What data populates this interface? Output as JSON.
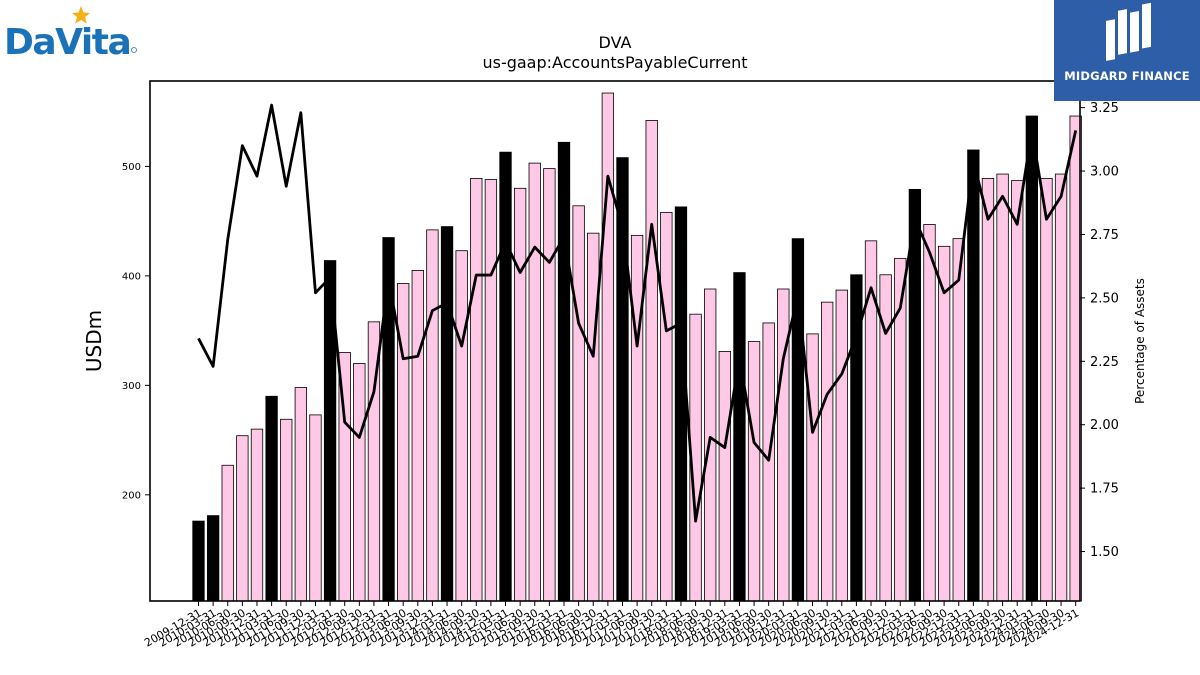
{
  "logos": {
    "left_text": "DaVita",
    "right_text": "MIDGARD FINANCE"
  },
  "chart_data": {
    "type": "bar",
    "title": "DVA",
    "subtitle": "us-gaap:AccountsPayableCurrent",
    "ylabel": "USDm",
    "y2label": "Percentage of Assets",
    "ylim": [
      103,
      578
    ],
    "y2lim": [
      1.305,
      3.355
    ],
    "yticks": [
      200,
      300,
      400,
      500
    ],
    "y2ticks": [
      1.5,
      1.75,
      2.0,
      2.25,
      2.5,
      2.75,
      3.0,
      3.25
    ],
    "y2tick_labels": [
      "1.50",
      "1.75",
      "2.00",
      "2.25",
      "2.50",
      "2.75",
      "3.00",
      "3.25"
    ],
    "categories": [
      "2009-12-31",
      "2010-03-31",
      "2010-06-30",
      "2010-09-30",
      "2010-12-31",
      "2011-03-31",
      "2011-06-30",
      "2011-09-30",
      "2011-12-31",
      "2012-03-31",
      "2012-06-30",
      "2012-09-30",
      "2012-12-31",
      "2013-03-31",
      "2013-06-30",
      "2013-09-30",
      "2013-12-31",
      "2014-03-31",
      "2014-06-30",
      "2014-09-30",
      "2014-12-31",
      "2015-03-31",
      "2015-06-30",
      "2015-09-30",
      "2015-12-31",
      "2016-03-31",
      "2016-06-30",
      "2016-09-30",
      "2016-12-31",
      "2017-03-31",
      "2017-06-30",
      "2017-09-30",
      "2017-12-31",
      "2018-03-31",
      "2018-06-30",
      "2018-09-30",
      "2018-12-31",
      "2019-03-31",
      "2019-06-30",
      "2019-09-30",
      "2019-12-31",
      "2020-03-31",
      "2020-06-30",
      "2020-09-30",
      "2020-12-31",
      "2021-03-31",
      "2021-06-30",
      "2021-09-30",
      "2021-12-31",
      "2022-03-31",
      "2022-06-30",
      "2022-09-30",
      "2022-12-31",
      "2023-03-31",
      "2023-06-30",
      "2023-09-30",
      "2023-12-31",
      "2024-03-31",
      "2024-06-30",
      "2024-09-30",
      "2024-12-31"
    ],
    "xtick_labels": [
      "2009-12-31",
      "2010-03-31",
      "2010-06-30",
      "2010-09-30",
      "2010-12-31",
      "2011-03-31",
      "2011-06-30",
      "2011-09-30",
      "2011-12-31",
      "2012-03-31",
      "2012-06-30",
      "2012-09-30",
      "2012-12-31",
      "2013-03-31",
      "2013-06-30",
      "2013-09-30",
      "2013-12-31",
      "2014-03-31",
      "2014-06-30",
      "2014-09-30",
      "2014-12-31",
      "2015-03-31",
      "2015-06-30",
      "2015-09-30",
      "2015-12-31",
      "2016-03-31",
      "2016-06-30",
      "2016-09-30",
      "2016-12-31",
      "2017-03-31",
      "2017-06-30",
      "2017-09-30",
      "2017-12-31",
      "2018-03-31",
      "2018-06-30",
      "2018-09-30",
      "2018-12-31",
      "2019-03-31",
      "2019-06-30",
      "2019-09-30",
      "2019-12-31",
      "2020-03-31",
      "2020-06-30",
      "2020-09-30",
      "2020-12-31",
      "2021-03-31",
      "2021-06-30",
      "2021-09-30",
      "2021-12-31",
      "2022-03-31",
      "2022-06-30",
      "2022-09-30",
      "2022-12-31",
      "2023-03-31",
      "2023-06-30",
      "2023-09-30",
      "2023-12-31",
      "2024-03-31",
      "2024-06-30",
      "2024-09-30",
      "2024-12-31"
    ],
    "series": [
      {
        "type": "bar",
        "axis": "left",
        "values": [
          176,
          181,
          227,
          254,
          260,
          290,
          269,
          298,
          273,
          414,
          330,
          320,
          358,
          435,
          393,
          405,
          442,
          445,
          423,
          489,
          488,
          513,
          480,
          503,
          498,
          522,
          464,
          439,
          567,
          508,
          437,
          542,
          458,
          463,
          365,
          388,
          331,
          403,
          340,
          357,
          388,
          434,
          347,
          376,
          387,
          401,
          432,
          401,
          416,
          479,
          447,
          427,
          434,
          515,
          489,
          493,
          487,
          546,
          489,
          493,
          546
        ]
      },
      {
        "type": "line",
        "axis": "right",
        "values": [
          2.34,
          2.23,
          2.73,
          3.1,
          2.98,
          3.26,
          2.94,
          3.23,
          2.52,
          2.58,
          2.01,
          1.95,
          2.13,
          2.57,
          2.26,
          2.27,
          2.45,
          2.48,
          2.31,
          2.59,
          2.59,
          2.72,
          2.6,
          2.7,
          2.64,
          2.74,
          2.4,
          2.27,
          2.98,
          2.78,
          2.31,
          2.79,
          2.37,
          2.4,
          1.62,
          1.95,
          1.91,
          2.26,
          1.93,
          1.86,
          2.26,
          2.51,
          1.97,
          2.12,
          2.2,
          2.35,
          2.54,
          2.36,
          2.46,
          2.81,
          2.68,
          2.52,
          2.57,
          3.04,
          2.81,
          2.9,
          2.79,
          3.16,
          2.81,
          2.9,
          3.16
        ]
      }
    ],
    "bar_colors": {
      "default": "#ffc8e6",
      "highlight": "#000000",
      "edge": "#000000"
    },
    "highlight_indices": [
      0,
      1,
      5,
      9,
      13,
      17,
      21,
      25,
      29,
      33,
      37,
      41,
      45,
      49,
      53,
      57
    ],
    "line_color": "#000000",
    "grid": false,
    "legend": "none"
  }
}
